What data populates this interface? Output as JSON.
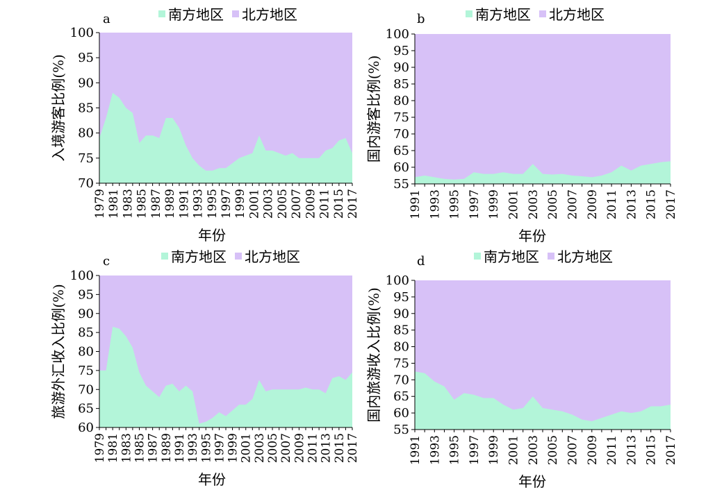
{
  "colors": {
    "south": "#b3f5d9",
    "north": "#d7c1f7",
    "axis": "#000000"
  },
  "legend": {
    "south": "南方地区",
    "north": "北方地区"
  },
  "chart_data": [
    {
      "id": "a",
      "panel_label": "a",
      "type": "area",
      "ylabel": "入境游客比例(%)",
      "xlabel": "年份",
      "ylim": [
        70,
        100
      ],
      "yticks": [
        70,
        75,
        80,
        85,
        90,
        95,
        100
      ],
      "xtick_labels": [
        "1979",
        "1981",
        "1983",
        "1985",
        "1987",
        "1989",
        "1991",
        "1993",
        "1995",
        "1997",
        "1999",
        "2001",
        "2003",
        "2005",
        "2007",
        "2009",
        "2011",
        "2015",
        "2017"
      ],
      "x": [
        1979,
        1980,
        1981,
        1982,
        1983,
        1984,
        1985,
        1986,
        1987,
        1988,
        1989,
        1990,
        1991,
        1992,
        1993,
        1994,
        1995,
        1996,
        1997,
        1998,
        1999,
        2000,
        2001,
        2002,
        2003,
        2004,
        2005,
        2006,
        2007,
        2008,
        2009,
        2010,
        2011,
        2012,
        2013,
        2014,
        2015,
        2016,
        2017
      ],
      "series": [
        {
          "name": "南方地区",
          "values": [
            79,
            83,
            88,
            87,
            85,
            84,
            78,
            79.5,
            79.5,
            79,
            83,
            83,
            81,
            77.5,
            75,
            73.5,
            72.5,
            72.5,
            73,
            73,
            74,
            75,
            75.5,
            76,
            79.5,
            76.5,
            76.5,
            76,
            75.5,
            76,
            75,
            75,
            75,
            75,
            76.5,
            77,
            78.5,
            79,
            76
          ]
        },
        {
          "name": "北方地区",
          "values": [
            21,
            17,
            12,
            13,
            15,
            16,
            22,
            20.5,
            20.5,
            21,
            17,
            17,
            19,
            22.5,
            25,
            26.5,
            27.5,
            27.5,
            27,
            27,
            26,
            25,
            24.5,
            24,
            20.5,
            23.5,
            23.5,
            24,
            24.5,
            24,
            25,
            25,
            25,
            25,
            23.5,
            23,
            21.5,
            21,
            24
          ]
        }
      ]
    },
    {
      "id": "b",
      "panel_label": "b",
      "type": "area",
      "ylabel": "国内游客比例(%)",
      "xlabel": "年份",
      "ylim": [
        55,
        100
      ],
      "yticks": [
        55,
        60,
        65,
        70,
        75,
        80,
        85,
        90,
        95,
        100
      ],
      "xtick_labels": [
        "1991",
        "1993",
        "1995",
        "1997",
        "1999",
        "2001",
        "2003",
        "2005",
        "2007",
        "2009",
        "2011",
        "2013",
        "2015",
        "2017"
      ],
      "x": [
        1991,
        1992,
        1993,
        1994,
        1995,
        1996,
        1997,
        1998,
        1999,
        2000,
        2001,
        2002,
        2003,
        2004,
        2005,
        2006,
        2007,
        2008,
        2009,
        2010,
        2011,
        2012,
        2013,
        2014,
        2015,
        2016,
        2017
      ],
      "series": [
        {
          "name": "南方地区",
          "values": [
            57,
            57.5,
            57,
            56.5,
            56.3,
            56.5,
            58.5,
            58,
            58,
            58.5,
            58,
            58,
            61,
            58,
            57.8,
            58,
            57.5,
            57.3,
            57,
            57.5,
            58.5,
            60.5,
            59,
            60.5,
            61,
            61.5,
            61.8
          ]
        },
        {
          "name": "北方地区",
          "values": [
            43,
            42.5,
            43,
            43.5,
            43.7,
            43.5,
            41.5,
            42,
            42,
            41.5,
            42,
            42,
            39,
            42,
            42.2,
            42,
            42.5,
            42.7,
            43,
            42.5,
            41.5,
            39.5,
            41,
            39.5,
            39,
            38.5,
            38.2
          ]
        }
      ]
    },
    {
      "id": "c",
      "panel_label": "c",
      "type": "area",
      "ylabel": "旅游外汇收入比例(%)",
      "xlabel": "年份",
      "ylim": [
        60,
        100
      ],
      "yticks": [
        60,
        65,
        70,
        75,
        80,
        85,
        90,
        95,
        100
      ],
      "xtick_labels": [
        "1979",
        "1981",
        "1983",
        "1985",
        "1987",
        "1989",
        "1991",
        "1993",
        "1995",
        "1997",
        "1999",
        "2001",
        "2003",
        "2005",
        "2007",
        "2009",
        "2011",
        "2013",
        "2015",
        "2017"
      ],
      "x": [
        1979,
        1980,
        1981,
        1982,
        1983,
        1984,
        1985,
        1986,
        1987,
        1988,
        1989,
        1990,
        1991,
        1992,
        1993,
        1994,
        1995,
        1996,
        1997,
        1998,
        1999,
        2000,
        2001,
        2002,
        2003,
        2004,
        2005,
        2006,
        2007,
        2008,
        2009,
        2010,
        2011,
        2012,
        2013,
        2014,
        2015,
        2016,
        2017
      ],
      "series": [
        {
          "name": "南方地区",
          "values": [
            75,
            75,
            86.5,
            86,
            84,
            81,
            74.5,
            71,
            69.5,
            68,
            71,
            71.5,
            69.5,
            71,
            69.5,
            61,
            61.5,
            62.5,
            64,
            63,
            64.5,
            66,
            66,
            67.5,
            72.5,
            69.5,
            70,
            70,
            70,
            70,
            70,
            70.5,
            70,
            70,
            69,
            73,
            73.5,
            72.5,
            74.5
          ]
        },
        {
          "name": "北方地区",
          "values": [
            25,
            25,
            13.5,
            14,
            16,
            19,
            25.5,
            29,
            30.5,
            32,
            29,
            28.5,
            30.5,
            29,
            30.5,
            39,
            38.5,
            37.5,
            36,
            37,
            35.5,
            34,
            34,
            32.5,
            27.5,
            30.5,
            30,
            30,
            30,
            30,
            30,
            29.5,
            30,
            30,
            31,
            27,
            26.5,
            27.5,
            25.5
          ]
        }
      ]
    },
    {
      "id": "d",
      "panel_label": "d",
      "type": "area",
      "ylabel": "国内旅游收入比例(%)",
      "xlabel": "年份",
      "ylim": [
        55,
        100
      ],
      "yticks": [
        55,
        60,
        65,
        70,
        75,
        80,
        85,
        90,
        95,
        100
      ],
      "xtick_labels": [
        "1991",
        "1993",
        "1995",
        "1997",
        "1999",
        "2001",
        "2003",
        "2005",
        "2007",
        "2009",
        "2011",
        "2013",
        "2015",
        "2017"
      ],
      "x": [
        1991,
        1992,
        1993,
        1994,
        1995,
        1996,
        1997,
        1998,
        1999,
        2000,
        2001,
        2002,
        2003,
        2004,
        2005,
        2006,
        2007,
        2008,
        2009,
        2010,
        2011,
        2012,
        2013,
        2014,
        2015,
        2016,
        2017
      ],
      "series": [
        {
          "name": "南方地区",
          "values": [
            72.5,
            72,
            69.5,
            68,
            64,
            66,
            65.5,
            64.5,
            64.5,
            62.5,
            61,
            61.5,
            65,
            61.5,
            61,
            60.5,
            59.5,
            58,
            57.5,
            58.5,
            59.5,
            60.5,
            60,
            60.5,
            62,
            62,
            62.5
          ]
        },
        {
          "name": "北方地区",
          "values": [
            27.5,
            28,
            30.5,
            32,
            36,
            34,
            34.5,
            35.5,
            35.5,
            37.5,
            39,
            38.5,
            35,
            38.5,
            39,
            39.5,
            40.5,
            42,
            42.5,
            41.5,
            40.5,
            39.5,
            40,
            39.5,
            38,
            38,
            37.5
          ]
        }
      ]
    }
  ]
}
